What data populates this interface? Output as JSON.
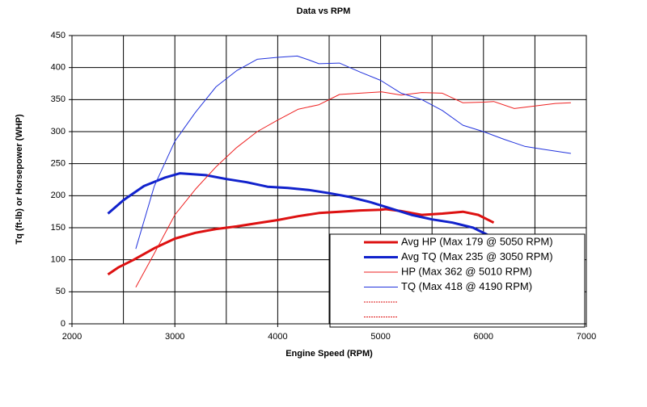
{
  "chart_data": {
    "type": "line",
    "title": "Data vs RPM",
    "x_label": "Engine Speed (RPM)",
    "y_label": "Tq (ft-lb) or Horsepower (WHP)",
    "xlim": [
      2000,
      7000
    ],
    "xticks": [
      2000,
      3000,
      4000,
      5000,
      6000,
      7000
    ],
    "xgrid": [
      2000,
      2500,
      3000,
      3500,
      4000,
      4500,
      5000,
      5500,
      6000,
      6500,
      7000
    ],
    "ylim": [
      0,
      450
    ],
    "yticks": [
      0,
      50,
      100,
      150,
      200,
      250,
      300,
      350,
      400,
      450
    ],
    "grid": true,
    "legend": "lower right",
    "series": [
      {
        "name": "Avg HP (Max 179 @ 5050 RPM)",
        "color": "#dd1111",
        "line_width": 3,
        "x": [
          2350,
          2450,
          2600,
          2800,
          3000,
          3200,
          3400,
          3600,
          3800,
          4000,
          4200,
          4400,
          4600,
          4800,
          5000,
          5050,
          5200,
          5400,
          5600,
          5800,
          5950,
          6100
        ],
        "values": [
          77,
          88,
          100,
          118,
          133,
          142,
          148,
          152,
          157,
          162,
          168,
          173,
          175,
          177,
          178,
          179,
          176,
          170,
          172,
          175,
          170,
          158
        ]
      },
      {
        "name": "Avg TQ (Max 235 @ 3050 RPM)",
        "color": "#1122cc",
        "line_width": 3,
        "x": [
          2350,
          2500,
          2700,
          2900,
          3050,
          3300,
          3500,
          3700,
          3900,
          4100,
          4300,
          4500,
          4700,
          4900,
          5100,
          5300,
          5500,
          5700,
          5900,
          6050
        ],
        "values": [
          172,
          193,
          215,
          228,
          235,
          232,
          226,
          221,
          214,
          212,
          209,
          204,
          198,
          190,
          180,
          170,
          163,
          158,
          150,
          138
        ]
      },
      {
        "name": "HP (Max 362 @ 5010 RPM)",
        "color": "#ee2222",
        "line_width": 1,
        "x": [
          2620,
          2800,
          3000,
          3200,
          3400,
          3600,
          3800,
          4000,
          4200,
          4400,
          4600,
          4800,
          5010,
          5200,
          5400,
          5600,
          5800,
          6000,
          6100,
          6300,
          6500,
          6700,
          6850
        ],
        "values": [
          57,
          110,
          170,
          210,
          245,
          275,
          300,
          318,
          335,
          342,
          358,
          360,
          362,
          357,
          361,
          360,
          345,
          346,
          347,
          336,
          340,
          344,
          345
        ]
      },
      {
        "name": "TQ (Max 418 @ 4190 RPM)",
        "color": "#2233dd",
        "line_width": 1,
        "x": [
          2620,
          2800,
          3000,
          3200,
          3400,
          3600,
          3800,
          4000,
          4190,
          4300,
          4400,
          4600,
          4800,
          5000,
          5200,
          5400,
          5600,
          5800,
          6000,
          6200,
          6400,
          6600,
          6850
        ],
        "values": [
          117,
          215,
          285,
          330,
          370,
          395,
          413,
          416,
          418,
          412,
          406,
          407,
          393,
          380,
          360,
          350,
          333,
          310,
          300,
          288,
          277,
          272,
          266
        ]
      }
    ]
  }
}
